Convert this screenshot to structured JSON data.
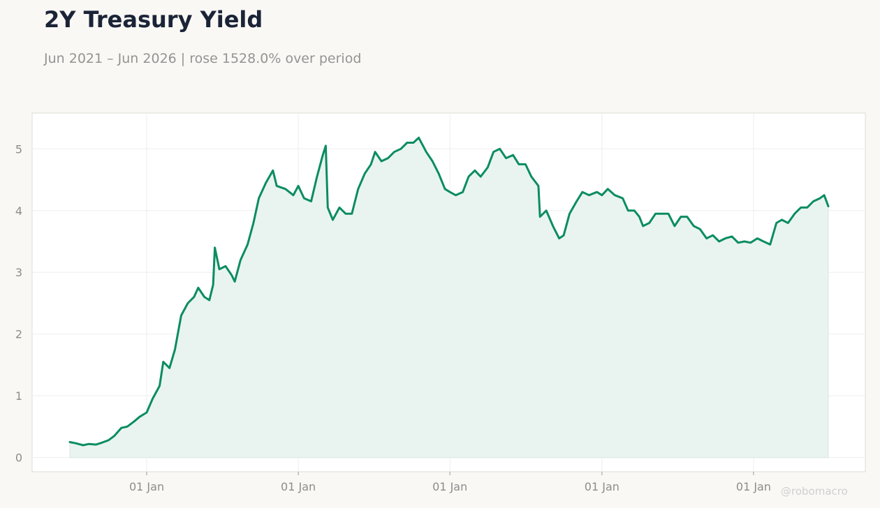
{
  "title": "2Y Treasury Yield",
  "subtitle": "Jun 2021 – Jun 2026 | rose 1528.0% over period",
  "watermark": "@robomacro",
  "colors": {
    "line": "#0b8c62",
    "fill": "#e9f4f0",
    "background": "#f9f8f5",
    "plot_background": "#ffffff",
    "grid": "#eeeeee"
  },
  "chart_data": {
    "type": "line",
    "title": "2Y Treasury Yield",
    "xlabel": "",
    "ylabel": "",
    "x_range": [
      "2021-06-30",
      "2026-06-30"
    ],
    "ylim": [
      -0.23,
      5.58
    ],
    "yticks": [
      0,
      1,
      2,
      3,
      4,
      5
    ],
    "xticks": [
      {
        "date": "2022-01-01",
        "label": "01 Jan"
      },
      {
        "date": "2023-01-01",
        "label": "01 Jan"
      },
      {
        "date": "2024-01-01",
        "label": "01 Jan"
      },
      {
        "date": "2025-01-01",
        "label": "01 Jan"
      },
      {
        "date": "2026-01-01",
        "label": "01 Jan"
      }
    ],
    "grid": true,
    "area_fill": true,
    "series": [
      {
        "points": [
          [
            "2021-06-30",
            0.25
          ],
          [
            "2021-07-15",
            0.23
          ],
          [
            "2021-08-01",
            0.2
          ],
          [
            "2021-08-15",
            0.22
          ],
          [
            "2021-09-01",
            0.21
          ],
          [
            "2021-09-15",
            0.24
          ],
          [
            "2021-10-01",
            0.28
          ],
          [
            "2021-10-15",
            0.35
          ],
          [
            "2021-11-01",
            0.48
          ],
          [
            "2021-11-15",
            0.5
          ],
          [
            "2021-12-01",
            0.58
          ],
          [
            "2021-12-15",
            0.66
          ],
          [
            "2022-01-01",
            0.73
          ],
          [
            "2022-01-15",
            0.95
          ],
          [
            "2022-02-01",
            1.16
          ],
          [
            "2022-02-10",
            1.55
          ],
          [
            "2022-02-25",
            1.45
          ],
          [
            "2022-03-10",
            1.75
          ],
          [
            "2022-03-25",
            2.3
          ],
          [
            "2022-04-10",
            2.5
          ],
          [
            "2022-04-25",
            2.6
          ],
          [
            "2022-05-05",
            2.75
          ],
          [
            "2022-05-20",
            2.6
          ],
          [
            "2022-06-01",
            2.55
          ],
          [
            "2022-06-10",
            2.8
          ],
          [
            "2022-06-14",
            3.4
          ],
          [
            "2022-06-25",
            3.05
          ],
          [
            "2022-07-10",
            3.1
          ],
          [
            "2022-07-25",
            2.95
          ],
          [
            "2022-08-01",
            2.85
          ],
          [
            "2022-08-15",
            3.2
          ],
          [
            "2022-09-01",
            3.45
          ],
          [
            "2022-09-15",
            3.8
          ],
          [
            "2022-09-28",
            4.2
          ],
          [
            "2022-10-15",
            4.45
          ],
          [
            "2022-11-01",
            4.65
          ],
          [
            "2022-11-10",
            4.4
          ],
          [
            "2022-12-01",
            4.35
          ],
          [
            "2022-12-20",
            4.25
          ],
          [
            "2023-01-01",
            4.4
          ],
          [
            "2023-01-15",
            4.2
          ],
          [
            "2023-02-01",
            4.15
          ],
          [
            "2023-02-15",
            4.55
          ],
          [
            "2023-03-01",
            4.9
          ],
          [
            "2023-03-08",
            5.05
          ],
          [
            "2023-03-13",
            4.05
          ],
          [
            "2023-03-25",
            3.85
          ],
          [
            "2023-04-10",
            4.05
          ],
          [
            "2023-04-25",
            3.95
          ],
          [
            "2023-05-10",
            3.95
          ],
          [
            "2023-05-25",
            4.35
          ],
          [
            "2023-06-10",
            4.6
          ],
          [
            "2023-06-25",
            4.75
          ],
          [
            "2023-07-05",
            4.95
          ],
          [
            "2023-07-20",
            4.8
          ],
          [
            "2023-08-05",
            4.85
          ],
          [
            "2023-08-20",
            4.95
          ],
          [
            "2023-09-05",
            5.0
          ],
          [
            "2023-09-20",
            5.1
          ],
          [
            "2023-10-05",
            5.1
          ],
          [
            "2023-10-18",
            5.18
          ],
          [
            "2023-11-05",
            4.95
          ],
          [
            "2023-11-20",
            4.8
          ],
          [
            "2023-12-05",
            4.6
          ],
          [
            "2023-12-20",
            4.35
          ],
          [
            "2024-01-01",
            4.3
          ],
          [
            "2024-01-15",
            4.25
          ],
          [
            "2024-02-01",
            4.3
          ],
          [
            "2024-02-15",
            4.55
          ],
          [
            "2024-03-01",
            4.65
          ],
          [
            "2024-03-15",
            4.55
          ],
          [
            "2024-04-01",
            4.7
          ],
          [
            "2024-04-15",
            4.95
          ],
          [
            "2024-04-30",
            5.0
          ],
          [
            "2024-05-15",
            4.85
          ],
          [
            "2024-06-01",
            4.9
          ],
          [
            "2024-06-15",
            4.75
          ],
          [
            "2024-07-01",
            4.75
          ],
          [
            "2024-07-15",
            4.55
          ],
          [
            "2024-08-01",
            4.4
          ],
          [
            "2024-08-05",
            3.9
          ],
          [
            "2024-08-20",
            4.0
          ],
          [
            "2024-09-05",
            3.75
          ],
          [
            "2024-09-20",
            3.55
          ],
          [
            "2024-10-01",
            3.6
          ],
          [
            "2024-10-15",
            3.95
          ],
          [
            "2024-11-01",
            4.15
          ],
          [
            "2024-11-15",
            4.3
          ],
          [
            "2024-12-01",
            4.25
          ],
          [
            "2024-12-20",
            4.3
          ],
          [
            "2025-01-01",
            4.25
          ],
          [
            "2025-01-15",
            4.35
          ],
          [
            "2025-02-01",
            4.25
          ],
          [
            "2025-02-20",
            4.2
          ],
          [
            "2025-03-05",
            4.0
          ],
          [
            "2025-03-20",
            4.0
          ],
          [
            "2025-04-01",
            3.9
          ],
          [
            "2025-04-10",
            3.75
          ],
          [
            "2025-04-25",
            3.8
          ],
          [
            "2025-05-10",
            3.95
          ],
          [
            "2025-05-25",
            3.95
          ],
          [
            "2025-06-10",
            3.95
          ],
          [
            "2025-06-25",
            3.75
          ],
          [
            "2025-07-10",
            3.9
          ],
          [
            "2025-07-25",
            3.9
          ],
          [
            "2025-08-10",
            3.75
          ],
          [
            "2025-08-25",
            3.7
          ],
          [
            "2025-09-10",
            3.55
          ],
          [
            "2025-09-25",
            3.6
          ],
          [
            "2025-10-10",
            3.5
          ],
          [
            "2025-10-25",
            3.55
          ],
          [
            "2025-11-10",
            3.58
          ],
          [
            "2025-11-25",
            3.48
          ],
          [
            "2025-12-10",
            3.5
          ],
          [
            "2025-12-25",
            3.48
          ],
          [
            "2026-01-10",
            3.55
          ],
          [
            "2026-01-25",
            3.5
          ],
          [
            "2026-02-10",
            3.45
          ],
          [
            "2026-02-25",
            3.8
          ],
          [
            "2026-03-10",
            3.85
          ],
          [
            "2026-03-25",
            3.8
          ],
          [
            "2026-04-10",
            3.95
          ],
          [
            "2026-04-25",
            4.05
          ],
          [
            "2026-05-10",
            4.05
          ],
          [
            "2026-05-25",
            4.15
          ],
          [
            "2026-06-10",
            4.2
          ],
          [
            "2026-06-20",
            4.25
          ],
          [
            "2026-06-30",
            4.07
          ]
        ]
      }
    ]
  }
}
